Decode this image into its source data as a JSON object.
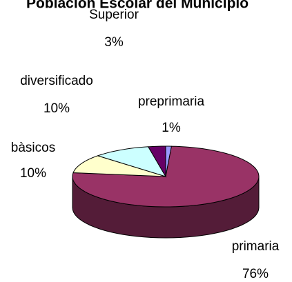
{
  "chart_data": {
    "type": "pie3d",
    "title": "Población Escolar del Municipio",
    "categories": [
      "preprimaria",
      "primaria",
      "bàsicos",
      "diversificado",
      "Superior"
    ],
    "values": [
      1,
      76,
      10,
      10,
      3
    ],
    "value_labels": [
      "1%",
      "76%",
      "10%",
      "10%",
      "3%"
    ],
    "colors": [
      "#9999ff",
      "#993366",
      "#ffffcc",
      "#ccffff",
      "#660066"
    ]
  }
}
